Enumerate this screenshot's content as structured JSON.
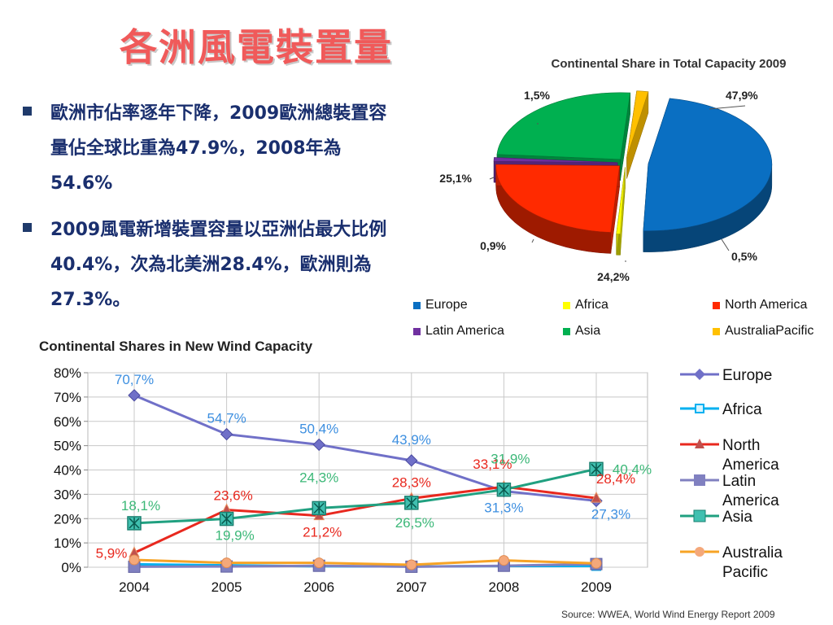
{
  "slide_title": "各洲風電裝置量",
  "bullets": [
    "歐洲市佔率逐年下降，2009歐洲總裝置容量佔全球比重為47.9%，2008年為54.6%",
    "2009風電新增裝置容量以亞洲佔最大比例40.4%，次為北美洲28.4%，歐洲則為27.3%。"
  ],
  "source": "Source: WWEA, World Wind Energy Report 2009",
  "chart_data": [
    {
      "type": "pie",
      "title": "Continental Share in Total Capacity 2009",
      "categories": [
        "Europe",
        "Africa",
        "North America",
        "Latin America",
        "Asia",
        "AustraliaPacific"
      ],
      "values": [
        47.9,
        0.5,
        24.2,
        0.9,
        25.1,
        1.5
      ],
      "labels": [
        "47,9%",
        "0,5%",
        "24,2%",
        "0,9%",
        "25,1%",
        "1,5%"
      ],
      "colors": [
        "#0a6fc2",
        "#ffff00",
        "#ff2a00",
        "#7030a0",
        "#00b050",
        "#ffc000"
      ],
      "legend_position": "bottom",
      "three_d": true
    },
    {
      "type": "line",
      "title": "Continental Shares in New Wind Capacity",
      "x": [
        "2004",
        "2005",
        "2006",
        "2007",
        "2008",
        "2009"
      ],
      "ylim": [
        0,
        80
      ],
      "yticks": [
        "0%",
        "10%",
        "20%",
        "30%",
        "40%",
        "50%",
        "60%",
        "70%",
        "80%"
      ],
      "grid": true,
      "legend_position": "right",
      "series": [
        {
          "name": "Europe",
          "values": [
            70.7,
            54.7,
            50.4,
            43.9,
            31.3,
            27.3
          ],
          "color": "#7070c8",
          "marker": "diamond",
          "labels": [
            "70,7%",
            "54,7%",
            "50,4%",
            "43,9%",
            "31,3%",
            "27,3%"
          ],
          "label_color": "#3d8fe0"
        },
        {
          "name": "Africa",
          "values": [
            1.2,
            0.8,
            0.4,
            0.3,
            0.5,
            0.5
          ],
          "color": "#00b0f0",
          "marker": "square",
          "labels": []
        },
        {
          "name": "North America",
          "values": [
            5.9,
            23.6,
            21.2,
            28.3,
            33.1,
            28.4
          ],
          "color": "#e8281e",
          "marker": "triangle",
          "labels": [
            "5,9%",
            "23,6%",
            "21,2%",
            "28,3%",
            "33,1%",
            "28,4%"
          ],
          "label_color": "#e8281e"
        },
        {
          "name": "Latin America",
          "values": [
            0.2,
            0.3,
            0.6,
            0.2,
            0.6,
            1.3
          ],
          "color": "#8080c0",
          "marker": "square-big",
          "labels": []
        },
        {
          "name": "Asia",
          "values": [
            18.1,
            19.9,
            24.3,
            26.5,
            31.9,
            40.4
          ],
          "color": "#20a080",
          "marker": "asterisk-square",
          "labels": [
            "18,1%",
            "19,9%",
            "24,3%",
            "26,5%",
            "31,9%",
            "40,4%"
          ],
          "label_color": "#3cb878"
        },
        {
          "name": "Australia Pacific",
          "values": [
            3.0,
            1.8,
            1.8,
            1.0,
            2.8,
            1.6
          ],
          "color": "#f7a325",
          "marker": "circle",
          "labels": []
        }
      ],
      "legend_labels": [
        [
          "Europe"
        ],
        [
          "Africa"
        ],
        [
          "North",
          "America"
        ],
        [
          "Latin",
          "America"
        ],
        [
          "Asia"
        ],
        [
          "Australia",
          "Pacific"
        ]
      ]
    }
  ]
}
